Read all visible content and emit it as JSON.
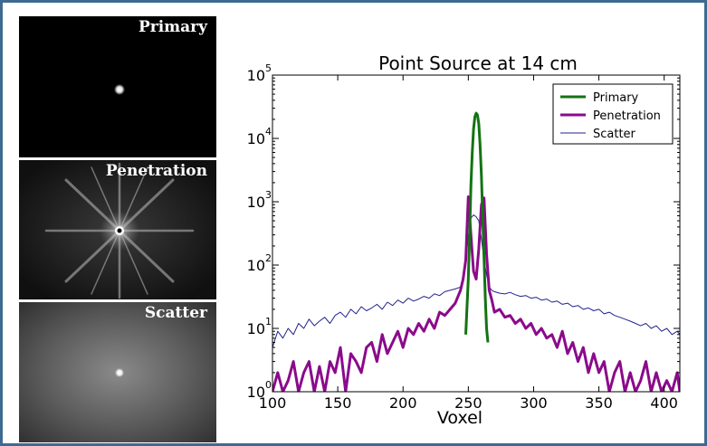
{
  "panels": {
    "primary": "Primary",
    "penetration": "Penetration",
    "scatter": "Scatter"
  },
  "chart_data": {
    "type": "line",
    "title": "Point Source at 14 cm",
    "xlabel": "Voxel",
    "ylabel": "",
    "xlim": [
      100,
      412
    ],
    "ylim": [
      1,
      100000
    ],
    "yscale": "log",
    "xticks": [
      100,
      150,
      200,
      250,
      300,
      350,
      400
    ],
    "yticks": [
      {
        "value": 1,
        "mantissa": "10",
        "exp": "0"
      },
      {
        "value": 10,
        "mantissa": "10",
        "exp": "1"
      },
      {
        "value": 100,
        "mantissa": "10",
        "exp": "2"
      },
      {
        "value": 1000,
        "mantissa": "10",
        "exp": "3"
      },
      {
        "value": 10000,
        "mantissa": "10",
        "exp": "4"
      },
      {
        "value": 100000,
        "mantissa": "10",
        "exp": "5"
      }
    ],
    "legend_position": "top-right",
    "series": [
      {
        "name": "Primary",
        "color": "#137313",
        "width": 3,
        "x": [
          248,
          250,
          251,
          252,
          253,
          254,
          255,
          256,
          257,
          258,
          259,
          260,
          261,
          262,
          263,
          264,
          265
        ],
        "y": [
          8,
          60,
          300,
          1800,
          6000,
          14000,
          22000,
          25000,
          23500,
          17000,
          8000,
          2600,
          600,
          130,
          30,
          10,
          6
        ]
      },
      {
        "name": "Penetration",
        "color": "#8b0a8b",
        "width": 3,
        "x": [
          100,
          104,
          108,
          112,
          116,
          120,
          124,
          128,
          132,
          136,
          140,
          144,
          148,
          152,
          156,
          160,
          164,
          168,
          172,
          176,
          180,
          184,
          188,
          192,
          196,
          200,
          204,
          208,
          212,
          216,
          220,
          224,
          228,
          232,
          236,
          240,
          244,
          246,
          248,
          250,
          252,
          254,
          256,
          258,
          260,
          262,
          264,
          266,
          268,
          270,
          274,
          278,
          282,
          286,
          290,
          294,
          298,
          302,
          306,
          310,
          314,
          318,
          322,
          326,
          330,
          334,
          338,
          342,
          346,
          350,
          354,
          358,
          362,
          366,
          370,
          374,
          378,
          382,
          386,
          390,
          394,
          398,
          402,
          406,
          410,
          412
        ],
        "y": [
          1,
          2,
          1,
          1.5,
          3,
          1,
          2,
          3,
          1,
          2.5,
          1,
          3,
          2,
          5,
          1,
          4,
          3,
          2,
          5,
          6,
          3,
          8,
          4,
          6,
          9,
          5,
          10,
          8,
          12,
          9,
          14,
          10,
          18,
          16,
          20,
          25,
          40,
          60,
          120,
          1200,
          300,
          80,
          60,
          180,
          900,
          1150,
          150,
          40,
          28,
          18,
          20,
          15,
          16,
          12,
          14,
          10,
          12,
          8,
          10,
          7,
          8,
          5,
          9,
          4,
          6,
          3,
          5,
          2,
          4,
          2,
          3,
          1,
          2,
          3,
          1,
          2,
          1,
          1.5,
          3,
          1,
          2,
          1,
          1.5,
          1,
          2,
          1
        ]
      },
      {
        "name": "Scatter",
        "color": "#23238e",
        "width": 1,
        "x": [
          100,
          104,
          108,
          112,
          116,
          120,
          124,
          128,
          132,
          136,
          140,
          144,
          148,
          152,
          156,
          160,
          164,
          168,
          172,
          176,
          180,
          184,
          188,
          192,
          196,
          200,
          204,
          208,
          212,
          216,
          220,
          224,
          228,
          232,
          236,
          240,
          244,
          246,
          248,
          250,
          252,
          254,
          256,
          258,
          260,
          262,
          264,
          266,
          268,
          270,
          274,
          278,
          282,
          286,
          290,
          294,
          298,
          302,
          306,
          310,
          314,
          318,
          322,
          326,
          330,
          334,
          338,
          342,
          346,
          350,
          354,
          358,
          362,
          366,
          370,
          374,
          378,
          382,
          386,
          390,
          394,
          398,
          402,
          406,
          410,
          412
        ],
        "y": [
          5,
          9,
          7,
          10,
          8,
          12,
          10,
          14,
          11,
          13,
          15,
          12,
          16,
          18,
          15,
          20,
          17,
          22,
          19,
          21,
          24,
          20,
          26,
          23,
          28,
          25,
          30,
          27,
          29,
          32,
          30,
          35,
          33,
          38,
          40,
          42,
          45,
          60,
          110,
          280,
          550,
          620,
          580,
          500,
          260,
          120,
          70,
          45,
          40,
          38,
          36,
          35,
          37,
          34,
          32,
          33,
          30,
          31,
          28,
          29,
          26,
          27,
          24,
          25,
          22,
          23,
          20,
          21,
          19,
          20,
          17,
          18,
          16,
          15,
          14,
          13,
          12,
          11,
          12,
          10,
          11,
          9,
          10,
          8,
          9,
          8
        ]
      }
    ]
  }
}
